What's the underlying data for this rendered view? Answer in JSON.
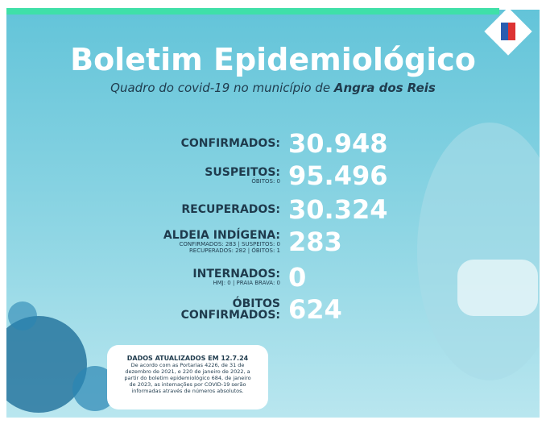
{
  "header": {
    "title": "Boletim Epidemiológico",
    "subtitle": "Quadro do covid-19 no município de",
    "place": "Angra dos Reis"
  },
  "stats": [
    {
      "label": [
        "CONFIRMADOS:"
      ],
      "details": [],
      "value": "30.948"
    },
    {
      "label": [
        "SUSPEITOS:"
      ],
      "details": [
        "ÓBITOS: 0"
      ],
      "value": "95.496"
    },
    {
      "label": [
        "RECUPERADOS:"
      ],
      "details": [],
      "value": "30.324"
    },
    {
      "label": [
        "ALDEIA INDÍGENA:"
      ],
      "details": [
        "CONFIRMADOS: 283 | SUSPEITOS: 0",
        "RECUPERADOS: 282 | ÓBITOS: 1"
      ],
      "value": "283"
    },
    {
      "label": [
        "INTERNADOS:"
      ],
      "details": [
        "HMJ: 0 | PRAIA BRAVA: 0"
      ],
      "value": "0"
    },
    {
      "label": [
        "ÓBITOS",
        "CONFIRMADOS:"
      ],
      "details": [],
      "value": "624"
    }
  ],
  "note": {
    "title": "DADOS ATUALIZADOS EM 12.7.24",
    "lines": [
      "De acordo com as Portarias 4226, de 31 de",
      "dezembro de 2021, e 220 de janeiro de 2022, a",
      "partir do boletim epidemiológico 684, de janeiro",
      "de 2023, as internações por COVID-19 serão",
      "informadas através de números absolutos."
    ]
  }
}
